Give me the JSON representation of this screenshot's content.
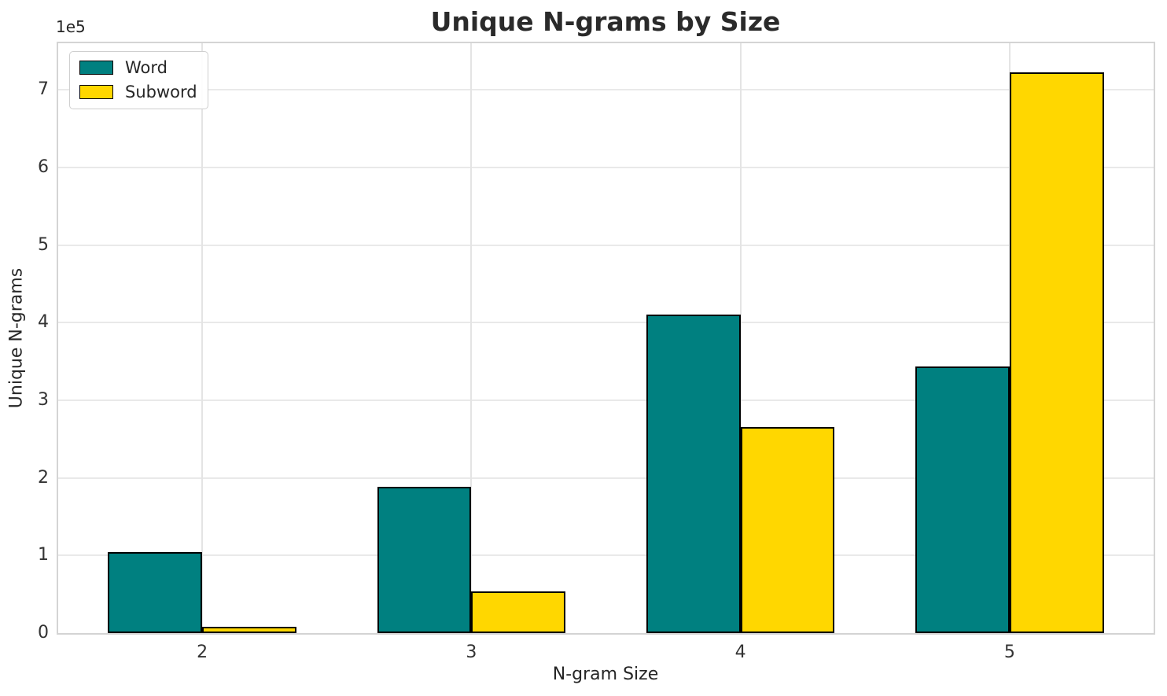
{
  "chart_data": {
    "type": "bar",
    "title": "Unique N-grams by Size",
    "xlabel": "N-gram Size",
    "ylabel": "Unique N-grams",
    "y_offset_text": "1e5",
    "categories": [
      "2",
      "3",
      "4",
      "5"
    ],
    "series": [
      {
        "name": "Word",
        "color": "#008080",
        "values": [
          104000,
          188000,
          410000,
          344000
        ]
      },
      {
        "name": "Subword",
        "color": "#ffd700",
        "values": [
          8000,
          54000,
          266000,
          723000
        ]
      }
    ],
    "bar_edge_color": "#000000",
    "ylim": [
      0,
      760000
    ],
    "yticks": {
      "values": [
        0,
        100000,
        200000,
        300000,
        400000,
        500000,
        600000,
        700000
      ],
      "labels": [
        "0",
        "1",
        "2",
        "3",
        "4",
        "5",
        "6",
        "7"
      ]
    },
    "grid": "both",
    "legend_position": "upper-left",
    "bar_width_fraction": 0.35
  }
}
